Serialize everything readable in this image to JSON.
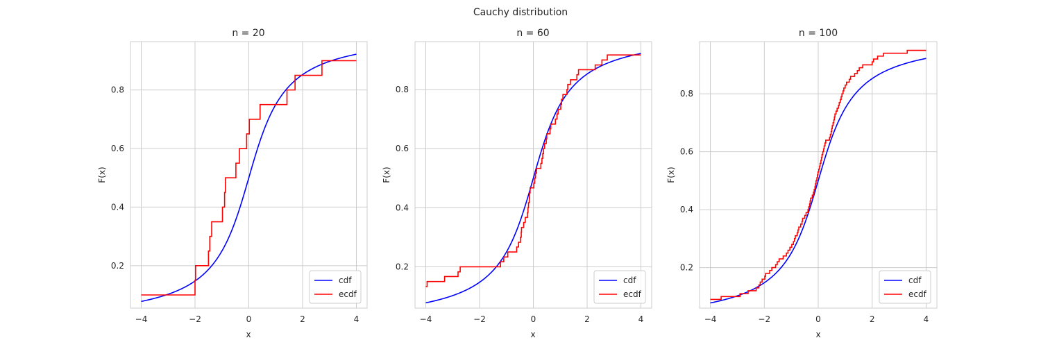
{
  "figure": {
    "suptitle": "Cauchy distribution"
  },
  "style": {
    "cdf_color": "#0000ff",
    "ecdf_color": "#ff0000",
    "grid_color": "#cccccc",
    "frame_color": "#cccccc",
    "background": "#ffffff"
  },
  "chart_data": [
    {
      "type": "line",
      "title": "n = 20",
      "xlabel": "x",
      "ylabel": "F(x)",
      "xlim": [
        -4.4,
        4.4
      ],
      "ylim": [
        0.055,
        0.965
      ],
      "xticks": [
        -4,
        -2,
        0,
        2,
        4
      ],
      "xtick_labels": [
        "−4",
        "−2",
        "0",
        "2",
        "4"
      ],
      "yticks": [
        0.2,
        0.4,
        0.6,
        0.8
      ],
      "ytick_labels": [
        "0.2",
        "0.4",
        "0.6",
        "0.8"
      ],
      "grid": true,
      "legend": {
        "placement": "lower-right",
        "entries": [
          "cdf",
          "ecdf"
        ]
      },
      "series": [
        {
          "name": "cdf",
          "kind": "cauchy_cdf",
          "x_range": [
            -4,
            4
          ],
          "location": 0,
          "scale": 1
        },
        {
          "name": "ecdf",
          "kind": "step",
          "x_start": -4,
          "x_end": 4,
          "y_start": 0.1,
          "steps": [
            [
              -2.0,
              0.15
            ],
            [
              -1.98,
              0.2
            ],
            [
              -1.5,
              0.25
            ],
            [
              -1.45,
              0.3
            ],
            [
              -1.38,
              0.35
            ],
            [
              -0.98,
              0.4
            ],
            [
              -0.9,
              0.45
            ],
            [
              -0.87,
              0.5
            ],
            [
              -0.48,
              0.55
            ],
            [
              -0.35,
              0.6
            ],
            [
              -0.08,
              0.65
            ],
            [
              0.02,
              0.7
            ],
            [
              0.42,
              0.75
            ],
            [
              1.42,
              0.8
            ],
            [
              1.72,
              0.85
            ],
            [
              2.72,
              0.9
            ]
          ]
        }
      ]
    },
    {
      "type": "line",
      "title": "n = 60",
      "xlabel": "x",
      "ylabel": "F(x)",
      "xlim": [
        -4.4,
        4.4
      ],
      "ylim": [
        0.06,
        0.962
      ],
      "xticks": [
        -4,
        -2,
        0,
        2,
        4
      ],
      "xtick_labels": [
        "−4",
        "−2",
        "0",
        "2",
        "4"
      ],
      "yticks": [
        0.2,
        0.4,
        0.6,
        0.8
      ],
      "ytick_labels": [
        "0.2",
        "0.4",
        "0.6",
        "0.8"
      ],
      "grid": true,
      "legend": {
        "placement": "lower-right",
        "entries": [
          "cdf",
          "ecdf"
        ]
      },
      "series": [
        {
          "name": "cdf",
          "kind": "cauchy_cdf",
          "x_range": [
            -4,
            4
          ],
          "location": 0,
          "scale": 1
        },
        {
          "name": "ecdf",
          "kind": "step",
          "x_start": -4,
          "x_end": 4,
          "y_start": 0.133,
          "steps": [
            [
              -3.95,
              0.15
            ],
            [
              -3.3,
              0.167
            ],
            [
              -2.8,
              0.183
            ],
            [
              -2.72,
              0.2
            ],
            [
              -1.22,
              0.217
            ],
            [
              -1.1,
              0.233
            ],
            [
              -0.95,
              0.25
            ],
            [
              -0.62,
              0.267
            ],
            [
              -0.55,
              0.283
            ],
            [
              -0.48,
              0.3
            ],
            [
              -0.45,
              0.317
            ],
            [
              -0.44,
              0.333
            ],
            [
              -0.36,
              0.35
            ],
            [
              -0.3,
              0.367
            ],
            [
              -0.22,
              0.383
            ],
            [
              -0.2,
              0.4
            ],
            [
              -0.18,
              0.417
            ],
            [
              -0.15,
              0.433
            ],
            [
              -0.14,
              0.45
            ],
            [
              -0.12,
              0.467
            ],
            [
              0.02,
              0.483
            ],
            [
              0.05,
              0.5
            ],
            [
              0.08,
              0.517
            ],
            [
              0.12,
              0.533
            ],
            [
              0.28,
              0.55
            ],
            [
              0.32,
              0.567
            ],
            [
              0.35,
              0.583
            ],
            [
              0.38,
              0.6
            ],
            [
              0.42,
              0.617
            ],
            [
              0.48,
              0.633
            ],
            [
              0.5,
              0.65
            ],
            [
              0.62,
              0.667
            ],
            [
              0.65,
              0.683
            ],
            [
              0.82,
              0.7
            ],
            [
              0.88,
              0.717
            ],
            [
              0.92,
              0.733
            ],
            [
              1.02,
              0.75
            ],
            [
              1.05,
              0.767
            ],
            [
              1.1,
              0.783
            ],
            [
              1.25,
              0.8
            ],
            [
              1.28,
              0.817
            ],
            [
              1.38,
              0.833
            ],
            [
              1.62,
              0.85
            ],
            [
              1.68,
              0.867
            ],
            [
              2.3,
              0.883
            ],
            [
              2.55,
              0.9
            ],
            [
              2.75,
              0.917
            ]
          ]
        }
      ]
    },
    {
      "type": "line",
      "title": "n = 100",
      "xlabel": "x",
      "ylabel": "F(x)",
      "xlim": [
        -4.4,
        4.4
      ],
      "ylim": [
        0.06,
        0.98
      ],
      "xticks": [
        -4,
        -2,
        0,
        2,
        4
      ],
      "xtick_labels": [
        "−4",
        "−2",
        "0",
        "2",
        "4"
      ],
      "yticks": [
        0.2,
        0.4,
        0.6,
        0.8
      ],
      "ytick_labels": [
        "0.2",
        "0.4",
        "0.6",
        "0.8"
      ],
      "grid": true,
      "legend": {
        "placement": "lower-right",
        "entries": [
          "cdf",
          "ecdf"
        ]
      },
      "series": [
        {
          "name": "cdf",
          "kind": "cauchy_cdf",
          "x_range": [
            -4,
            4
          ],
          "location": 0,
          "scale": 1
        },
        {
          "name": "ecdf",
          "kind": "step",
          "x_start": -4,
          "x_end": 4,
          "y_start": 0.09,
          "steps": [
            [
              -3.6,
              0.1
            ],
            [
              -2.9,
              0.11
            ],
            [
              -2.6,
              0.12
            ],
            [
              -2.3,
              0.13
            ],
            [
              -2.2,
              0.14
            ],
            [
              -2.15,
              0.15
            ],
            [
              -2.08,
              0.16
            ],
            [
              -1.98,
              0.17
            ],
            [
              -1.95,
              0.18
            ],
            [
              -1.8,
              0.19
            ],
            [
              -1.72,
              0.2
            ],
            [
              -1.58,
              0.21
            ],
            [
              -1.52,
              0.22
            ],
            [
              -1.45,
              0.23
            ],
            [
              -1.3,
              0.24
            ],
            [
              -1.18,
              0.25
            ],
            [
              -1.12,
              0.26
            ],
            [
              -1.05,
              0.27
            ],
            [
              -0.98,
              0.28
            ],
            [
              -0.92,
              0.29
            ],
            [
              -0.88,
              0.3
            ],
            [
              -0.85,
              0.31
            ],
            [
              -0.78,
              0.32
            ],
            [
              -0.75,
              0.33
            ],
            [
              -0.72,
              0.34
            ],
            [
              -0.65,
              0.35
            ],
            [
              -0.6,
              0.36
            ],
            [
              -0.58,
              0.37
            ],
            [
              -0.5,
              0.38
            ],
            [
              -0.45,
              0.39
            ],
            [
              -0.38,
              0.4
            ],
            [
              -0.35,
              0.41
            ],
            [
              -0.32,
              0.42
            ],
            [
              -0.3,
              0.43
            ],
            [
              -0.28,
              0.44
            ],
            [
              -0.22,
              0.45
            ],
            [
              -0.18,
              0.46
            ],
            [
              -0.15,
              0.47
            ],
            [
              -0.12,
              0.48
            ],
            [
              -0.1,
              0.49
            ],
            [
              -0.08,
              0.5
            ],
            [
              -0.05,
              0.51
            ],
            [
              -0.03,
              0.52
            ],
            [
              -0.01,
              0.53
            ],
            [
              0.02,
              0.54
            ],
            [
              0.05,
              0.55
            ],
            [
              0.07,
              0.56
            ],
            [
              0.1,
              0.57
            ],
            [
              0.12,
              0.58
            ],
            [
              0.14,
              0.59
            ],
            [
              0.17,
              0.6
            ],
            [
              0.2,
              0.61
            ],
            [
              0.22,
              0.62
            ],
            [
              0.25,
              0.63
            ],
            [
              0.28,
              0.64
            ],
            [
              0.42,
              0.65
            ],
            [
              0.45,
              0.66
            ],
            [
              0.48,
              0.67
            ],
            [
              0.5,
              0.68
            ],
            [
              0.52,
              0.69
            ],
            [
              0.55,
              0.7
            ],
            [
              0.58,
              0.71
            ],
            [
              0.6,
              0.72
            ],
            [
              0.62,
              0.73
            ],
            [
              0.66,
              0.74
            ],
            [
              0.7,
              0.75
            ],
            [
              0.75,
              0.76
            ],
            [
              0.78,
              0.77
            ],
            [
              0.82,
              0.78
            ],
            [
              0.85,
              0.79
            ],
            [
              0.88,
              0.8
            ],
            [
              0.92,
              0.81
            ],
            [
              0.95,
              0.82
            ],
            [
              1.0,
              0.83
            ],
            [
              1.05,
              0.84
            ],
            [
              1.15,
              0.85
            ],
            [
              1.2,
              0.86
            ],
            [
              1.35,
              0.87
            ],
            [
              1.45,
              0.88
            ],
            [
              1.52,
              0.89
            ],
            [
              1.65,
              0.9
            ],
            [
              2.0,
              0.91
            ],
            [
              2.05,
              0.92
            ],
            [
              2.2,
              0.93
            ],
            [
              2.42,
              0.94
            ],
            [
              3.3,
              0.95
            ]
          ]
        }
      ]
    }
  ]
}
